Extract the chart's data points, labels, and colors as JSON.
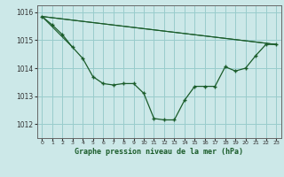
{
  "title": "Graphe pression niveau de la mer (hPa)",
  "bg_color": "#cce8e8",
  "grid_color": "#99cccc",
  "line_color": "#1a5c2a",
  "xlim": [
    -0.5,
    23.5
  ],
  "ylim": [
    1011.5,
    1016.25
  ],
  "yticks": [
    1012,
    1013,
    1014,
    1015,
    1016
  ],
  "xticks": [
    0,
    1,
    2,
    3,
    4,
    5,
    6,
    7,
    8,
    9,
    10,
    11,
    12,
    13,
    14,
    15,
    16,
    17,
    18,
    19,
    20,
    21,
    22,
    23
  ],
  "series_main": {
    "x": [
      0,
      1,
      2,
      3,
      4,
      5,
      6,
      7,
      8,
      9,
      10,
      11,
      12,
      13,
      14,
      15,
      16,
      17,
      18,
      19,
      20,
      21,
      22,
      23
    ],
    "y": [
      1015.85,
      1015.55,
      1015.2,
      1014.75,
      1014.35,
      1013.7,
      1013.45,
      1013.4,
      1013.45,
      1013.45,
      1013.1,
      1012.2,
      1012.15,
      1012.15,
      1012.85,
      1013.35,
      1013.35,
      1013.35,
      1014.05,
      1013.9,
      1014.0,
      1014.45,
      1014.85,
      1014.85
    ]
  },
  "series_straight1": {
    "x": [
      0,
      23
    ],
    "y": [
      1015.85,
      1014.85
    ]
  },
  "series_straight2": {
    "x": [
      0,
      23
    ],
    "y": [
      1015.85,
      1014.85
    ]
  },
  "series_short": {
    "x": [
      0,
      3
    ],
    "y": [
      1015.85,
      1014.75
    ]
  }
}
